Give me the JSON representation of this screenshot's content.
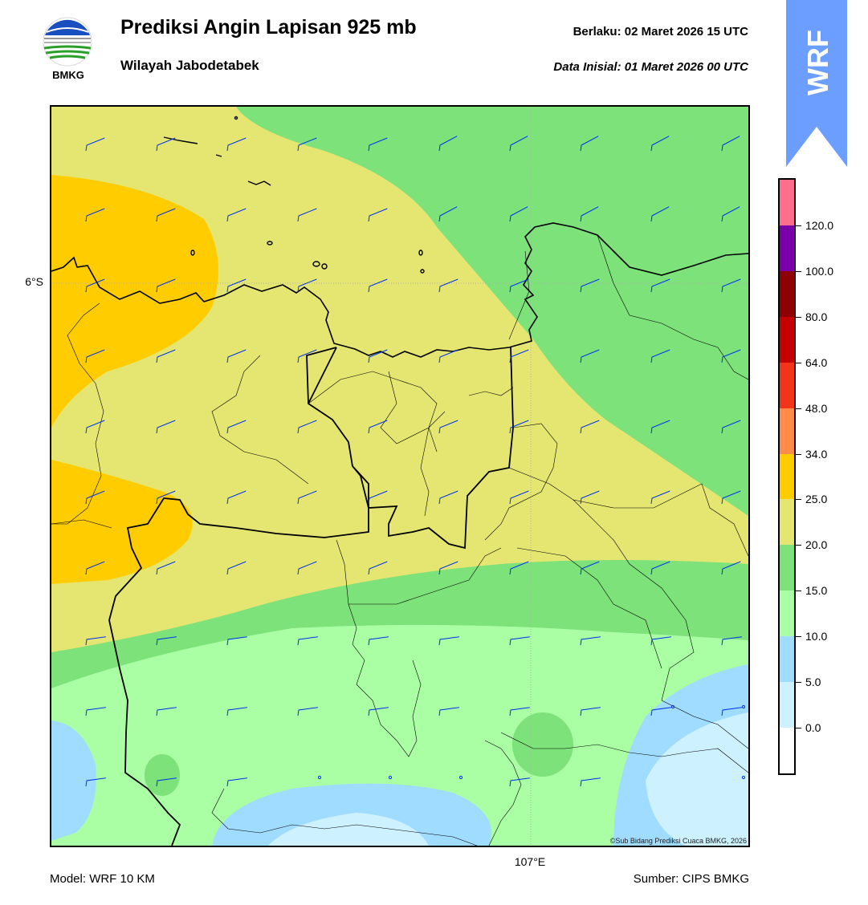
{
  "header": {
    "logo_text": "BMKG",
    "title": "Prediksi Angin Lapisan 925 mb",
    "subtitle": "Wilayah Jabodetabek",
    "valid": "Berlaku:  02 Maret 2026 15 UTC",
    "initial": "Data Inisial:  01 Maret 2026 00 UTC"
  },
  "ribbon": {
    "text": "WRF",
    "color": "#6b9eff"
  },
  "map": {
    "lat_label": "6°S",
    "lon_label": "107°E",
    "copyright": "©Sub Bidang Prediksi Cuaca BMKG, 2026",
    "zone_colors": {
      "orange": "#ffcc00",
      "yellow": "#e5e672",
      "green": "#7de27a",
      "light_green": "#aaffa4",
      "light_blue": "#a0dcff",
      "pale_blue": "#cdf1ff",
      "barb": "#0033ee"
    }
  },
  "footer": {
    "model": "Model: WRF 10 KM",
    "source": "Sumber: CIPS BMKG"
  },
  "colorbar": {
    "segments_bottom_to_top": [
      "#ffffff",
      "#cdf1ff",
      "#a0dcff",
      "#aaffa4",
      "#7de27a",
      "#e5e672",
      "#ffcc00",
      "#ff8a4a",
      "#f23418",
      "#c40000",
      "#8f0000",
      "#7a00a8",
      "#ff6e8c"
    ],
    "labels": [
      "0.0",
      "5.0",
      "10.0",
      "15.0",
      "20.0",
      "25.0",
      "34.0",
      "48.0",
      "64.0",
      "80.0",
      "100.0",
      "120.0"
    ]
  }
}
